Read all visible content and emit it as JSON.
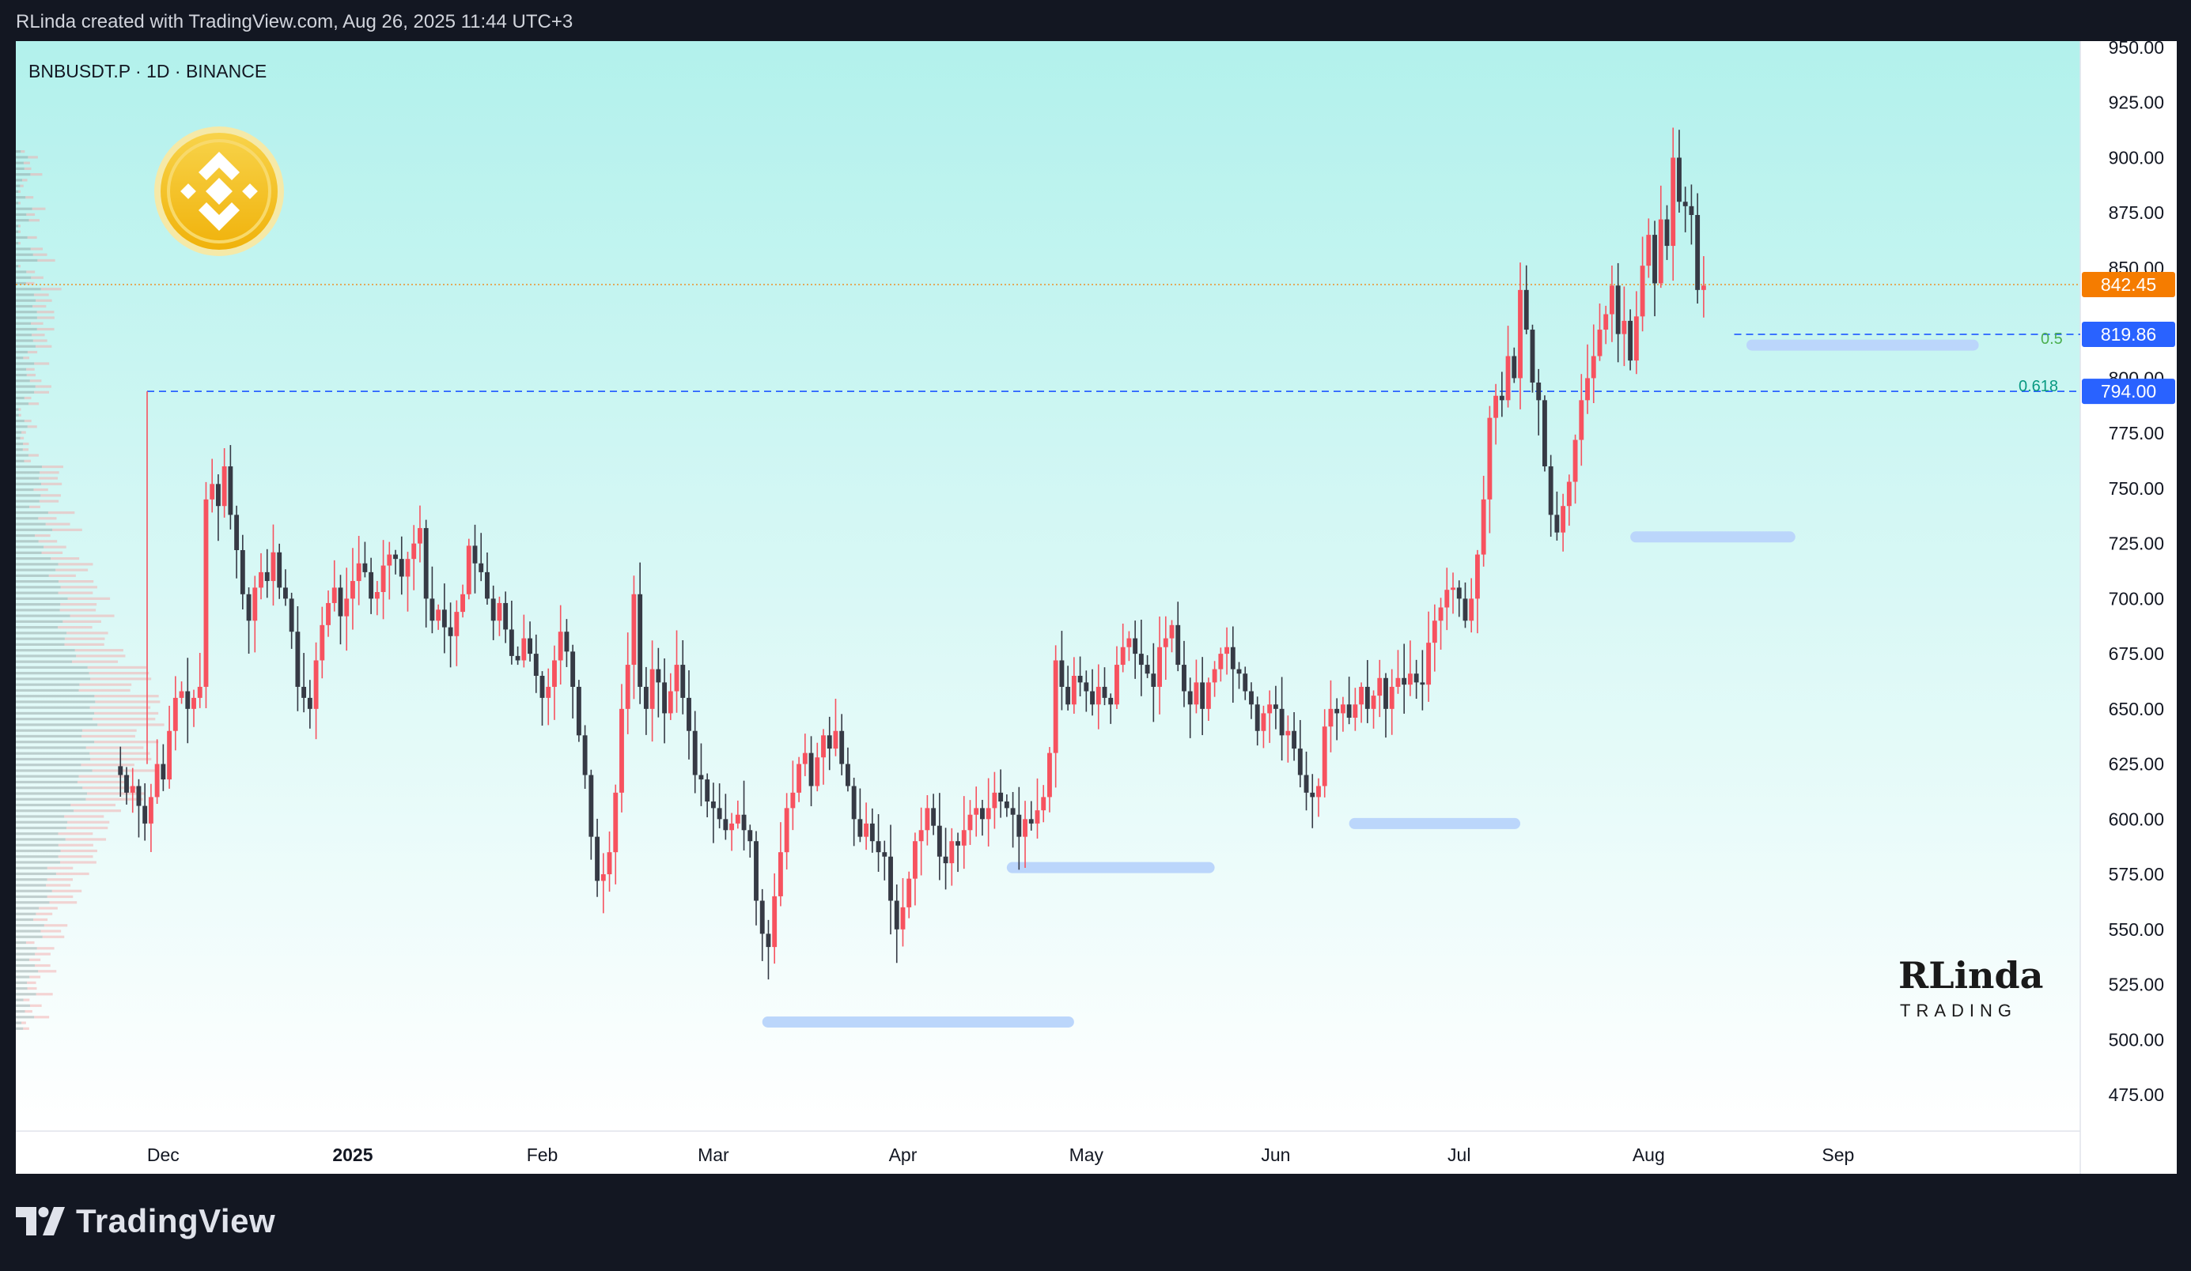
{
  "header": {
    "attribution": "RLinda created with TradingView.com, Aug 26, 2025 11:44 UTC+3"
  },
  "footer": {
    "brand": "TradingView"
  },
  "colors": {
    "up": "#f7525f",
    "down": "#363a45",
    "upWick": "#f7525f",
    "downWick": "#363a45",
    "bgTop": "#b2f1ec",
    "bgBottom": "#ffffff",
    "accent_orange": "#f57c00",
    "level_blue": "#2962ff",
    "zone_blue": "#bbd6fb"
  },
  "chart_data": {
    "type": "candlestick",
    "symbol_label": "BNBUSDT.P · 1D · BINANCE",
    "ylim": [
      460,
      955
    ],
    "y_ticks": [
      950,
      925,
      900,
      875,
      850,
      800,
      775,
      750,
      725,
      700,
      675,
      650,
      625,
      600,
      575,
      550,
      525,
      500,
      475
    ],
    "y_tick_labels": [
      "950.00",
      "925.00",
      "900.00",
      "875.00",
      "850.00",
      "800.00",
      "775.00",
      "750.00",
      "725.00",
      "700.00",
      "675.00",
      "650.00",
      "625.00",
      "600.00",
      "575.00",
      "550.00",
      "525.00",
      "500.00",
      "475.00"
    ],
    "x_axis": {
      "start": "2024-11-25",
      "end": "2025-09-30",
      "ticks": [
        {
          "date": "2024-12-01",
          "label": "Dec"
        },
        {
          "date": "2025-01-01",
          "label": "2025"
        },
        {
          "date": "2025-02-01",
          "label": "Feb"
        },
        {
          "date": "2025-03-01",
          "label": "Mar"
        },
        {
          "date": "2025-04-01",
          "label": "Apr"
        },
        {
          "date": "2025-05-01",
          "label": "May"
        },
        {
          "date": "2025-06-01",
          "label": "Jun"
        },
        {
          "date": "2025-07-01",
          "label": "Jul"
        },
        {
          "date": "2025-08-01",
          "label": "Aug"
        },
        {
          "date": "2025-09-01",
          "label": "Sep"
        }
      ]
    },
    "first_candle_date": "2024-11-24",
    "candles_close": [
      620,
      612,
      615,
      606,
      598,
      610,
      625,
      618,
      640,
      655,
      658,
      650,
      655,
      660,
      745,
      752,
      742,
      760,
      738,
      722,
      702,
      690,
      705,
      712,
      708,
      721,
      705,
      700,
      685,
      660,
      655,
      650,
      672,
      688,
      698,
      705,
      692,
      700,
      708,
      716,
      712,
      700,
      703,
      715,
      720,
      718,
      710,
      718,
      725,
      732,
      700,
      690,
      695,
      687,
      683,
      694,
      702,
      724,
      716,
      712,
      700,
      690,
      698,
      686,
      674,
      672,
      682,
      675,
      665,
      655,
      660,
      672,
      685,
      676,
      660,
      638,
      620,
      592,
      572,
      575,
      585,
      612,
      650,
      670,
      702,
      660,
      650,
      668,
      662,
      648,
      658,
      670,
      655,
      640,
      620,
      618,
      608,
      605,
      600,
      595,
      598,
      602,
      595,
      590,
      563,
      548,
      542,
      565,
      585,
      605,
      612,
      625,
      630,
      615,
      628,
      638,
      632,
      640,
      625,
      615,
      600,
      592,
      598,
      590,
      585,
      583,
      563,
      550,
      560,
      573,
      590,
      595,
      605,
      597,
      583,
      580,
      590,
      588,
      595,
      602,
      605,
      600,
      605,
      612,
      608,
      605,
      602,
      592,
      600,
      598,
      604,
      610,
      630,
      672,
      660,
      652,
      665,
      662,
      658,
      652,
      660,
      655,
      652,
      670,
      678,
      682,
      675,
      670,
      666,
      660,
      678,
      682,
      688,
      670,
      658,
      652,
      662,
      650,
      662,
      668,
      675,
      678,
      668,
      666,
      658,
      652,
      640,
      648,
      652,
      650,
      638,
      640,
      632,
      620,
      612,
      610,
      615,
      642,
      650,
      648,
      652,
      646,
      652,
      660,
      650,
      656,
      664,
      650,
      660,
      664,
      661,
      666,
      662,
      661,
      680,
      690,
      696,
      704,
      705,
      700,
      690,
      700,
      720,
      745,
      782,
      792,
      790,
      810,
      800,
      840,
      822,
      798,
      790,
      760,
      738,
      730,
      742,
      753,
      772,
      790,
      800,
      810,
      822,
      829,
      842,
      820,
      826,
      808,
      828,
      851,
      865,
      843,
      872,
      860,
      900,
      880,
      878,
      874,
      840,
      842
    ],
    "price_line": {
      "value": 842.45,
      "label": "842.45"
    },
    "levels": [
      {
        "value": 819.86,
        "label": "819.86",
        "fib": "0.5"
      },
      {
        "value": 794.0,
        "label": "794.00",
        "fib": "0.618"
      }
    ],
    "support_zones": [
      {
        "start": "2025-03-09",
        "end": "2025-04-29",
        "price": 508
      },
      {
        "start": "2025-04-18",
        "end": "2025-05-22",
        "price": 578
      },
      {
        "start": "2025-06-13",
        "end": "2025-07-11",
        "price": 598
      },
      {
        "start": "2025-07-29",
        "end": "2025-08-25",
        "price": 728
      },
      {
        "start": "2025-08-17",
        "end": "2025-09-24",
        "price": 815
      }
    ],
    "watermark": {
      "line1": "RLinda",
      "line2": "TRADING"
    }
  }
}
